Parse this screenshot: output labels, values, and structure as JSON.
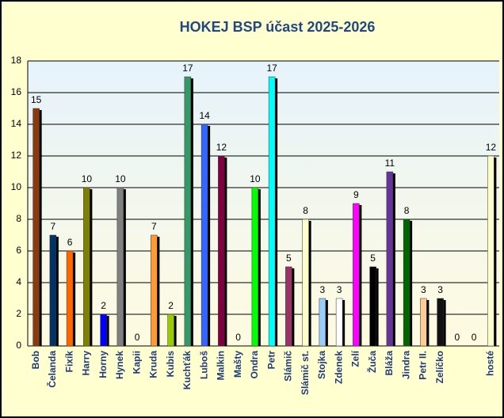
{
  "chart_data": {
    "type": "bar",
    "title": "HOKEJ BSP účast 2025-2026",
    "categories": [
      "Bob",
      "Čelanda",
      "Fixík",
      "Harry",
      "Horny",
      "Hynek",
      "Kapii",
      "Kruda",
      "Kubis",
      "Kuchťák",
      "Luboš",
      "Malkin",
      "Mašty",
      "Ondra",
      "Petr",
      "Slámič",
      "Slámič st.",
      "Stojka",
      "Zdenek",
      "Zelí",
      "Žuča",
      "Bláža",
      "Jindra",
      "Petr II.",
      "Zelíčko",
      null,
      null,
      "hosté"
    ],
    "values": [
      15,
      7,
      6,
      10,
      2,
      10,
      0,
      7,
      2,
      17,
      14,
      12,
      0,
      10,
      17,
      5,
      8,
      3,
      3,
      9,
      5,
      11,
      8,
      3,
      3,
      0,
      0,
      12
    ],
    "colors": [
      "#8b3a0f",
      "#003366",
      "#ff6600",
      "#808000",
      "#0000ff",
      "#808080",
      null,
      "#ff9933",
      "#99cc00",
      "#339966",
      "#3366ff",
      "#800040",
      null,
      "#00ff00",
      "#00ffff",
      "#993366",
      "#ffffcc",
      "#99ccff",
      "#ffffff",
      "#ff00ff",
      "#000000",
      "#663399",
      "#006600",
      "#ffcc99",
      "#111111",
      null,
      null,
      "#ffffcc"
    ],
    "ylim": [
      0,
      18
    ],
    "yticks": [
      0,
      2,
      4,
      6,
      8,
      10,
      12,
      14,
      16,
      18
    ],
    "grid": true
  }
}
